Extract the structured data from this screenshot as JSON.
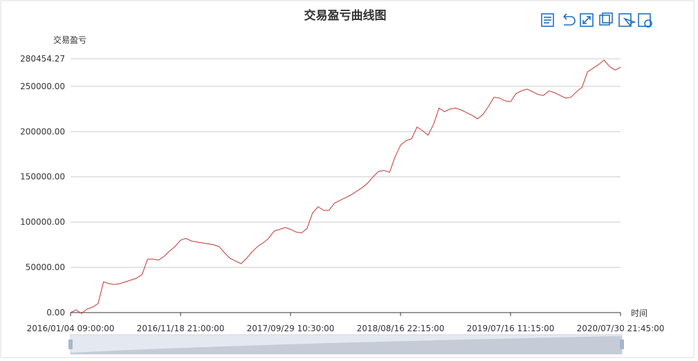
{
  "chart_data": {
    "type": "line",
    "title": "交易盈亏曲线图",
    "y_label": "交易盈亏",
    "x_label": "时间",
    "x": [
      "2016/01/04 09:00:00",
      null,
      null,
      null,
      null,
      null,
      null,
      null,
      null,
      null,
      null,
      null,
      null,
      null,
      null,
      null,
      null,
      null,
      null,
      null,
      "2016/11/18 21:00:00",
      null,
      null,
      null,
      null,
      null,
      null,
      null,
      null,
      null,
      null,
      null,
      null,
      null,
      null,
      null,
      null,
      null,
      null,
      null,
      "2017/09/29 10:30:00",
      null,
      null,
      null,
      null,
      null,
      null,
      null,
      null,
      null,
      null,
      null,
      null,
      null,
      null,
      null,
      null,
      null,
      null,
      null,
      "2018/08/16 22:15:00",
      null,
      null,
      null,
      null,
      null,
      null,
      null,
      null,
      null,
      null,
      null,
      null,
      null,
      null,
      null,
      null,
      null,
      null,
      null,
      "2019/07/16 11:15:00",
      null,
      null,
      null,
      null,
      null,
      null,
      null,
      null,
      null,
      null,
      null,
      null,
      null,
      null,
      null,
      null,
      null,
      null,
      null,
      "2020/07/30 21:45:00"
    ],
    "series": [
      {
        "color": "#c23531",
        "values": [
          0,
          3000,
          -1000,
          4000,
          6000,
          10000,
          34000,
          32000,
          31000,
          32000,
          34000,
          36000,
          38000,
          42000,
          59000,
          59000,
          58000,
          62000,
          68000,
          73000,
          80000,
          82000,
          79000,
          78000,
          77000,
          76000,
          75000,
          73000,
          66000,
          60000,
          57000,
          54000,
          60000,
          67000,
          73000,
          77000,
          82000,
          90000,
          92000,
          94000,
          92000,
          89000,
          88000,
          93000,
          110000,
          117000,
          113000,
          113000,
          121000,
          124000,
          127000,
          130000,
          134000,
          138000,
          143000,
          150000,
          156000,
          157000,
          155000,
          172000,
          185000,
          190000,
          192000,
          205000,
          201000,
          196000,
          208000,
          226000,
          222000,
          225000,
          226000,
          224000,
          221000,
          218000,
          214000,
          219000,
          228000,
          238000,
          237000,
          234000,
          233000,
          242000,
          245000,
          247000,
          244000,
          241000,
          240000,
          245000,
          243000,
          240000,
          237000,
          238000,
          244000,
          249000,
          266000,
          270000,
          274000,
          279000,
          272000,
          268000,
          271000
        ]
      }
    ],
    "ylim": [
      0,
      280454.27
    ],
    "yticks": [
      {
        "value": 0,
        "label": "0.00"
      },
      {
        "value": 50000,
        "label": "50000.00"
      },
      {
        "value": 100000,
        "label": "100000.00"
      },
      {
        "value": 150000,
        "label": "150000.00"
      },
      {
        "value": 200000,
        "label": "200000.00"
      },
      {
        "value": 250000,
        "label": "250000.00"
      },
      280454.27
    ],
    "grid": true
  }
}
